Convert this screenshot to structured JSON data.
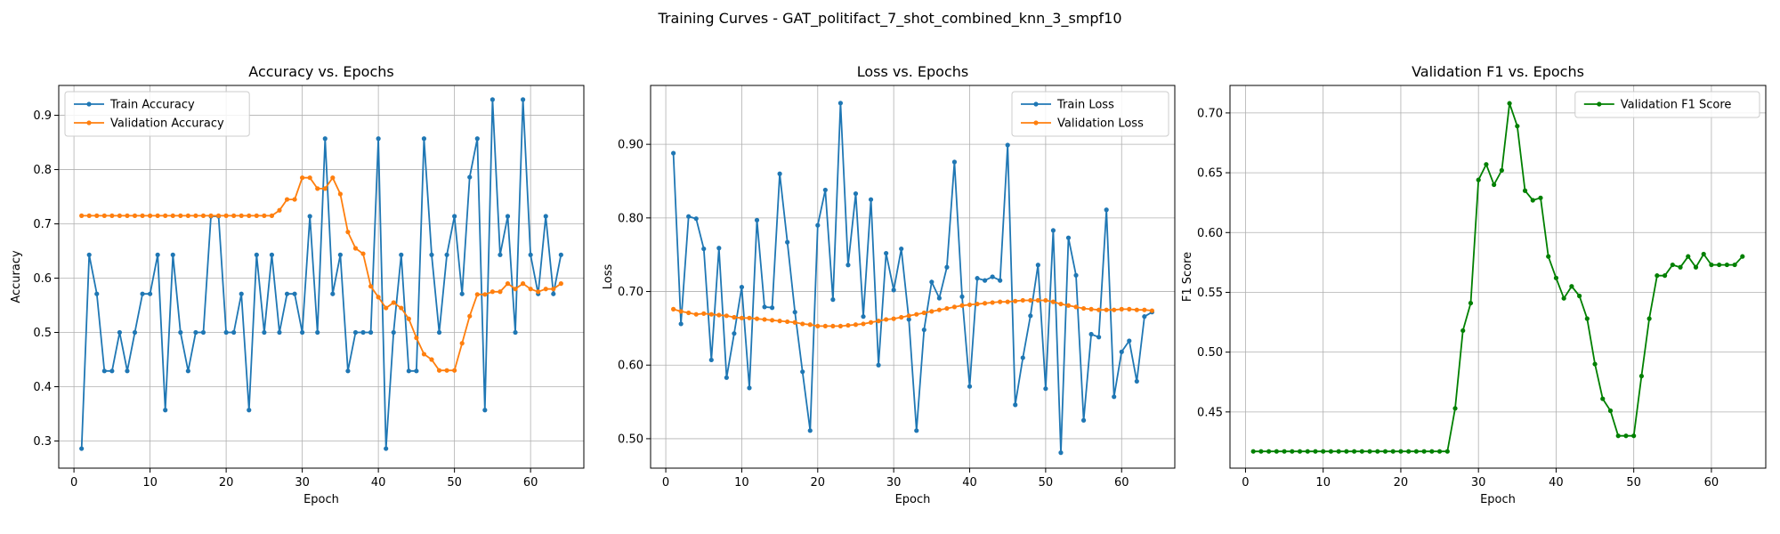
{
  "figure": {
    "suptitle": "Training Curves - GAT_politifact_7_shot_combined_knn_3_smpf10"
  },
  "chart_data": [
    {
      "type": "line",
      "title": "Accuracy vs. Epochs",
      "xlabel": "Epoch",
      "ylabel": "Accuracy",
      "xlim": [
        -2,
        67
      ],
      "ylim": [
        0.25,
        0.955
      ],
      "xticks": [
        0,
        10,
        20,
        30,
        40,
        50,
        60
      ],
      "yticks": [
        0.3,
        0.4,
        0.5,
        0.6,
        0.7,
        0.8,
        0.9
      ],
      "grid": true,
      "legend_position": "top-left",
      "x": [
        1,
        2,
        3,
        4,
        5,
        6,
        7,
        8,
        9,
        10,
        11,
        12,
        13,
        14,
        15,
        16,
        17,
        18,
        19,
        20,
        21,
        22,
        23,
        24,
        25,
        26,
        27,
        28,
        29,
        30,
        31,
        32,
        33,
        34,
        35,
        36,
        37,
        38,
        39,
        40,
        41,
        42,
        43,
        44,
        45,
        46,
        47,
        48,
        49,
        50,
        51,
        52,
        53,
        54,
        55,
        56,
        57,
        58,
        59,
        60,
        61,
        62,
        63,
        64
      ],
      "series": [
        {
          "name": "Train Accuracy",
          "color": "#1f77b4",
          "values": [
            0.286,
            0.643,
            0.571,
            0.429,
            0.429,
            0.5,
            0.429,
            0.5,
            0.571,
            0.571,
            0.643,
            0.357,
            0.643,
            0.5,
            0.429,
            0.5,
            0.5,
            0.714,
            0.714,
            0.5,
            0.5,
            0.571,
            0.357,
            0.643,
            0.5,
            0.643,
            0.5,
            0.571,
            0.571,
            0.5,
            0.714,
            0.5,
            0.857,
            0.571,
            0.643,
            0.429,
            0.5,
            0.5,
            0.5,
            0.857,
            0.286,
            0.5,
            0.643,
            0.429,
            0.429,
            0.857,
            0.643,
            0.5,
            0.643,
            0.714,
            0.571,
            0.786,
            0.857,
            0.357,
            0.929,
            0.643,
            0.714,
            0.5,
            0.929,
            0.643,
            0.571,
            0.714,
            0.571,
            0.643
          ]
        },
        {
          "name": "Validation Accuracy",
          "color": "#ff7f0e",
          "values": [
            0.715,
            0.715,
            0.715,
            0.715,
            0.715,
            0.715,
            0.715,
            0.715,
            0.715,
            0.715,
            0.715,
            0.715,
            0.715,
            0.715,
            0.715,
            0.715,
            0.715,
            0.715,
            0.715,
            0.715,
            0.715,
            0.715,
            0.715,
            0.715,
            0.715,
            0.715,
            0.725,
            0.745,
            0.745,
            0.785,
            0.785,
            0.765,
            0.765,
            0.785,
            0.755,
            0.685,
            0.655,
            0.645,
            0.585,
            0.565,
            0.545,
            0.555,
            0.545,
            0.525,
            0.49,
            0.46,
            0.45,
            0.43,
            0.43,
            0.43,
            0.48,
            0.53,
            0.57,
            0.57,
            0.575,
            0.575,
            0.59,
            0.58,
            0.59,
            0.58,
            0.575,
            0.58,
            0.58,
            0.59
          ]
        }
      ]
    },
    {
      "type": "line",
      "title": "Loss vs. Epochs",
      "xlabel": "Epoch",
      "ylabel": "Loss",
      "xlim": [
        -2,
        67
      ],
      "ylim": [
        0.46,
        0.98
      ],
      "xticks": [
        0,
        10,
        20,
        30,
        40,
        50,
        60
      ],
      "yticks": [
        0.5,
        0.6,
        0.7,
        0.8,
        0.9
      ],
      "grid": true,
      "legend_position": "top-right",
      "x": [
        1,
        2,
        3,
        4,
        5,
        6,
        7,
        8,
        9,
        10,
        11,
        12,
        13,
        14,
        15,
        16,
        17,
        18,
        19,
        20,
        21,
        22,
        23,
        24,
        25,
        26,
        27,
        28,
        29,
        30,
        31,
        32,
        33,
        34,
        35,
        36,
        37,
        38,
        39,
        40,
        41,
        42,
        43,
        44,
        45,
        46,
        47,
        48,
        49,
        50,
        51,
        52,
        53,
        54,
        55,
        56,
        57,
        58,
        59,
        60,
        61,
        62,
        63,
        64
      ],
      "series": [
        {
          "name": "Train Loss",
          "color": "#1f77b4",
          "values": [
            0.888,
            0.656,
            0.802,
            0.799,
            0.758,
            0.607,
            0.759,
            0.583,
            0.643,
            0.706,
            0.569,
            0.797,
            0.679,
            0.678,
            0.86,
            0.767,
            0.672,
            0.591,
            0.511,
            0.79,
            0.838,
            0.689,
            0.956,
            0.736,
            0.833,
            0.666,
            0.825,
            0.6,
            0.752,
            0.702,
            0.758,
            0.662,
            0.511,
            0.648,
            0.713,
            0.691,
            0.733,
            0.876,
            0.693,
            0.571,
            0.718,
            0.715,
            0.72,
            0.715,
            0.899,
            0.546,
            0.61,
            0.667,
            0.736,
            0.568,
            0.783,
            0.481,
            0.773,
            0.722,
            0.525,
            0.642,
            0.638,
            0.811,
            0.557,
            0.618,
            0.633,
            0.578,
            0.666,
            0.672
          ]
        },
        {
          "name": "Validation Loss",
          "color": "#ff7f0e",
          "values": [
            0.676,
            0.673,
            0.671,
            0.669,
            0.67,
            0.669,
            0.668,
            0.667,
            0.665,
            0.664,
            0.664,
            0.663,
            0.662,
            0.661,
            0.66,
            0.659,
            0.658,
            0.656,
            0.655,
            0.653,
            0.653,
            0.653,
            0.653,
            0.654,
            0.655,
            0.656,
            0.658,
            0.66,
            0.662,
            0.663,
            0.665,
            0.667,
            0.669,
            0.671,
            0.673,
            0.675,
            0.677,
            0.679,
            0.681,
            0.682,
            0.683,
            0.684,
            0.685,
            0.686,
            0.686,
            0.687,
            0.688,
            0.688,
            0.688,
            0.688,
            0.686,
            0.683,
            0.681,
            0.679,
            0.677,
            0.676,
            0.675,
            0.675,
            0.675,
            0.676,
            0.676,
            0.675,
            0.675,
            0.674
          ]
        }
      ]
    },
    {
      "type": "line",
      "title": "Validation F1 vs. Epochs",
      "xlabel": "Epoch",
      "ylabel": "F1 Score",
      "xlim": [
        -2,
        67
      ],
      "ylim": [
        0.403,
        0.723
      ],
      "xticks": [
        0,
        10,
        20,
        30,
        40,
        50,
        60
      ],
      "yticks": [
        0.45,
        0.5,
        0.55,
        0.6,
        0.65,
        0.7
      ],
      "grid": true,
      "legend_position": "top-right",
      "x": [
        1,
        2,
        3,
        4,
        5,
        6,
        7,
        8,
        9,
        10,
        11,
        12,
        13,
        14,
        15,
        16,
        17,
        18,
        19,
        20,
        21,
        22,
        23,
        24,
        25,
        26,
        27,
        28,
        29,
        30,
        31,
        32,
        33,
        34,
        35,
        36,
        37,
        38,
        39,
        40,
        41,
        42,
        43,
        44,
        45,
        46,
        47,
        48,
        49,
        50,
        51,
        52,
        53,
        54,
        55,
        56,
        57,
        58,
        59,
        60,
        61,
        62,
        63,
        64
      ],
      "series": [
        {
          "name": "Validation F1 Score",
          "color": "#008000",
          "values": [
            0.417,
            0.417,
            0.417,
            0.417,
            0.417,
            0.417,
            0.417,
            0.417,
            0.417,
            0.417,
            0.417,
            0.417,
            0.417,
            0.417,
            0.417,
            0.417,
            0.417,
            0.417,
            0.417,
            0.417,
            0.417,
            0.417,
            0.417,
            0.417,
            0.417,
            0.417,
            0.453,
            0.518,
            0.541,
            0.644,
            0.657,
            0.64,
            0.652,
            0.708,
            0.689,
            0.635,
            0.627,
            0.629,
            0.58,
            0.562,
            0.545,
            0.555,
            0.547,
            0.528,
            0.49,
            0.461,
            0.451,
            0.43,
            0.43,
            0.43,
            0.48,
            0.528,
            0.564,
            0.564,
            0.573,
            0.571,
            0.58,
            0.571,
            0.582,
            0.573,
            0.573,
            0.573,
            0.573,
            0.58
          ]
        }
      ]
    }
  ]
}
